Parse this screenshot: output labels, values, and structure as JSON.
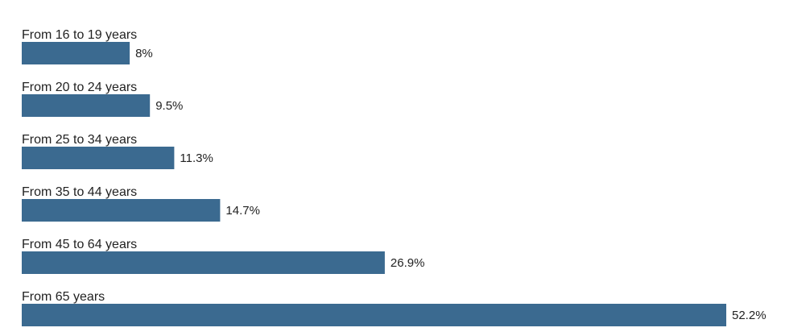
{
  "chart_data": {
    "type": "bar",
    "orientation": "horizontal",
    "categories": [
      "From 16 to 19 years",
      "From 20 to 24 years",
      "From 25 to 34 years",
      "From 35 to 44 years",
      "From 45 to 64 years",
      "From 65 years"
    ],
    "values": [
      8,
      9.5,
      11.3,
      14.7,
      26.9,
      52.2
    ],
    "value_labels": [
      "8%",
      "9.5%",
      "11.3%",
      "14.7%",
      "26.9%",
      "52.2%"
    ],
    "unit": "%",
    "bar_color": "#3b6a90",
    "xlim": [
      0,
      52.2
    ],
    "grid": false,
    "legend": "none"
  }
}
